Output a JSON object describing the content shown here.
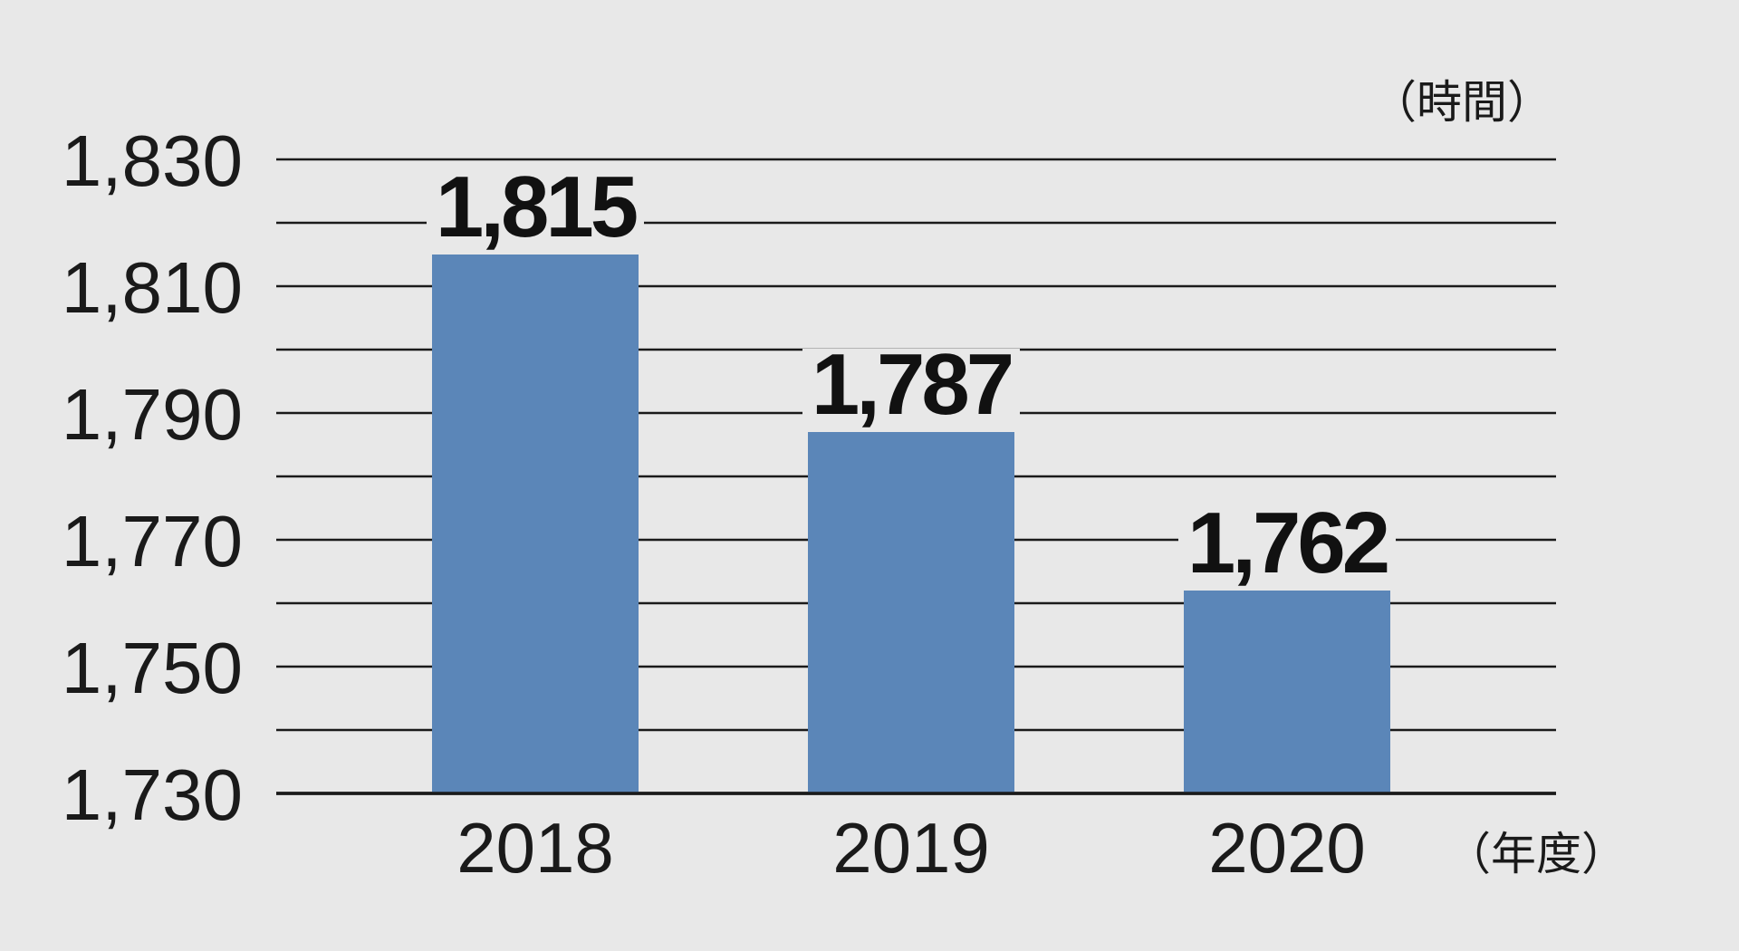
{
  "chart_data": {
    "type": "bar",
    "categories": [
      "2018",
      "2019",
      "2020"
    ],
    "values": [
      1815,
      1787,
      1762
    ],
    "value_labels": [
      "1,815",
      "1,787",
      "1,762"
    ],
    "title": "",
    "xlabel": "（年度）",
    "ylabel": "（時間）",
    "ylim": [
      1730,
      1830
    ],
    "y_ticks": [
      1730,
      1750,
      1770,
      1790,
      1810,
      1830
    ],
    "y_tick_labels": [
      "1,730",
      "1,750",
      "1,770",
      "1,790",
      "1,810",
      "1,830"
    ],
    "grid_step": 10,
    "grid": true,
    "legend": "none",
    "bar_color": "#5b86b8",
    "grid_color": "#1a1a1a",
    "background_color": "#e8e8e8"
  }
}
